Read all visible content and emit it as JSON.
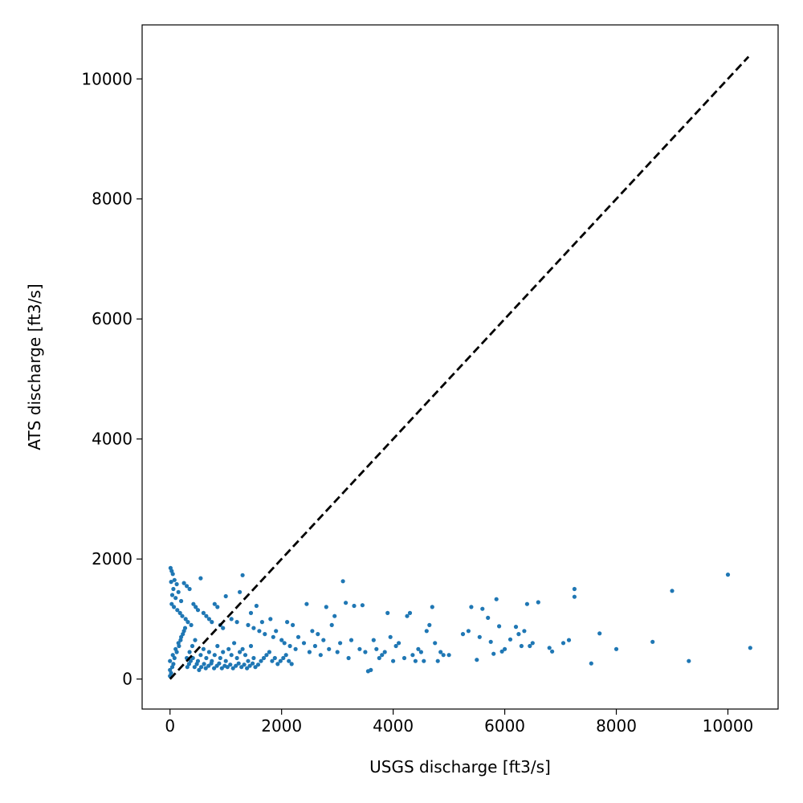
{
  "chart_data": {
    "type": "scatter",
    "title": "",
    "xlabel": "USGS discharge [ft3/s]",
    "ylabel": "ATS discharge [ft3/s]",
    "xlim": [
      -500,
      10900
    ],
    "ylim": [
      -500,
      10900
    ],
    "xticks": [
      0,
      2000,
      4000,
      6000,
      8000,
      10000
    ],
    "yticks": [
      0,
      2000,
      4000,
      6000,
      8000,
      10000
    ],
    "grid": false,
    "legend": "none",
    "reference_line": {
      "style": "dashed",
      "color": "#000000",
      "from": [
        0,
        0
      ],
      "to": [
        10370,
        10370
      ]
    },
    "series": [
      {
        "color": "#1f77b4",
        "points": [
          [
            0,
            50
          ],
          [
            0,
            150
          ],
          [
            0,
            300
          ],
          [
            10,
            1850
          ],
          [
            30,
            1800
          ],
          [
            50,
            1750
          ],
          [
            20,
            1620
          ],
          [
            80,
            1650
          ],
          [
            120,
            1580
          ],
          [
            60,
            1500
          ],
          [
            150,
            1450
          ],
          [
            40,
            1400
          ],
          [
            100,
            1350
          ],
          [
            200,
            1300
          ],
          [
            30,
            1250
          ],
          [
            70,
            1200
          ],
          [
            130,
            1150
          ],
          [
            250,
            1600
          ],
          [
            300,
            1550
          ],
          [
            350,
            1500
          ],
          [
            180,
            1100
          ],
          [
            220,
            1050
          ],
          [
            280,
            1000
          ],
          [
            320,
            950
          ],
          [
            380,
            900
          ],
          [
            420,
            1250
          ],
          [
            460,
            1200
          ],
          [
            500,
            1150
          ],
          [
            550,
            1680
          ],
          [
            600,
            1100
          ],
          [
            650,
            1050
          ],
          [
            700,
            1000
          ],
          [
            750,
            950
          ],
          [
            800,
            1250
          ],
          [
            850,
            1200
          ],
          [
            900,
            900
          ],
          [
            950,
            850
          ],
          [
            1000,
            1380
          ],
          [
            1100,
            1000
          ],
          [
            1200,
            950
          ],
          [
            1250,
            1450
          ],
          [
            1300,
            1730
          ],
          [
            1400,
            900
          ],
          [
            1450,
            1100
          ],
          [
            1500,
            850
          ],
          [
            1550,
            1220
          ],
          [
            1600,
            800
          ],
          [
            1650,
            950
          ],
          [
            1700,
            750
          ],
          [
            1800,
            1000
          ],
          [
            1850,
            700
          ],
          [
            1900,
            800
          ],
          [
            2000,
            650
          ],
          [
            2050,
            600
          ],
          [
            2100,
            950
          ],
          [
            2150,
            550
          ],
          [
            2200,
            900
          ],
          [
            2250,
            500
          ],
          [
            2300,
            700
          ],
          [
            2400,
            600
          ],
          [
            2450,
            1250
          ],
          [
            2500,
            450
          ],
          [
            2550,
            800
          ],
          [
            2600,
            550
          ],
          [
            2650,
            750
          ],
          [
            2700,
            400
          ],
          [
            2750,
            650
          ],
          [
            2800,
            1200
          ],
          [
            2850,
            500
          ],
          [
            2900,
            900
          ],
          [
            2950,
            1050
          ],
          [
            3000,
            450
          ],
          [
            3050,
            600
          ],
          [
            3100,
            1630
          ],
          [
            3150,
            1270
          ],
          [
            3200,
            350
          ],
          [
            3250,
            650
          ],
          [
            3300,
            1220
          ],
          [
            3400,
            500
          ],
          [
            3450,
            1230
          ],
          [
            3500,
            450
          ],
          [
            3550,
            130
          ],
          [
            3600,
            150
          ],
          [
            3650,
            650
          ],
          [
            3700,
            500
          ],
          [
            3750,
            350
          ],
          [
            3800,
            400
          ],
          [
            3850,
            450
          ],
          [
            3900,
            1100
          ],
          [
            3950,
            700
          ],
          [
            4000,
            300
          ],
          [
            4050,
            550
          ],
          [
            4100,
            600
          ],
          [
            4200,
            350
          ],
          [
            4250,
            1050
          ],
          [
            4300,
            1100
          ],
          [
            4350,
            400
          ],
          [
            4400,
            300
          ],
          [
            4450,
            500
          ],
          [
            4500,
            450
          ],
          [
            4550,
            300
          ],
          [
            4600,
            800
          ],
          [
            4650,
            900
          ],
          [
            4700,
            1200
          ],
          [
            4750,
            600
          ],
          [
            4800,
            300
          ],
          [
            4850,
            450
          ],
          [
            4900,
            400
          ],
          [
            5000,
            400
          ],
          [
            5250,
            750
          ],
          [
            5350,
            800
          ],
          [
            5400,
            1200
          ],
          [
            5500,
            320
          ],
          [
            5550,
            700
          ],
          [
            5600,
            1170
          ],
          [
            5700,
            1020
          ],
          [
            5750,
            620
          ],
          [
            5800,
            420
          ],
          [
            5850,
            1330
          ],
          [
            5900,
            880
          ],
          [
            5950,
            460
          ],
          [
            6000,
            500
          ],
          [
            6100,
            660
          ],
          [
            6200,
            870
          ],
          [
            6250,
            750
          ],
          [
            6300,
            550
          ],
          [
            6350,
            800
          ],
          [
            6400,
            1250
          ],
          [
            6450,
            550
          ],
          [
            6500,
            600
          ],
          [
            6600,
            1280
          ],
          [
            6800,
            520
          ],
          [
            6850,
            460
          ],
          [
            7050,
            600
          ],
          [
            7150,
            650
          ],
          [
            7250,
            1500
          ],
          [
            7250,
            1370
          ],
          [
            7550,
            260
          ],
          [
            7700,
            760
          ],
          [
            8000,
            500
          ],
          [
            8650,
            620
          ],
          [
            9000,
            1470
          ],
          [
            9300,
            300
          ],
          [
            10000,
            1740
          ],
          [
            10400,
            520
          ],
          [
            50,
            400
          ],
          [
            100,
            500
          ],
          [
            150,
            600
          ],
          [
            200,
            700
          ],
          [
            250,
            800
          ],
          [
            300,
            350
          ],
          [
            350,
            450
          ],
          [
            400,
            550
          ],
          [
            450,
            650
          ],
          [
            500,
            300
          ],
          [
            550,
            400
          ],
          [
            600,
            500
          ],
          [
            650,
            350
          ],
          [
            700,
            450
          ],
          [
            750,
            300
          ],
          [
            800,
            400
          ],
          [
            850,
            550
          ],
          [
            900,
            350
          ],
          [
            950,
            450
          ],
          [
            1000,
            300
          ],
          [
            1050,
            500
          ],
          [
            1100,
            400
          ],
          [
            1150,
            600
          ],
          [
            1200,
            350
          ],
          [
            1250,
            450
          ],
          [
            1300,
            500
          ],
          [
            1350,
            400
          ],
          [
            1400,
            300
          ],
          [
            1450,
            550
          ],
          [
            1500,
            350
          ],
          [
            20,
            100
          ],
          [
            40,
            200
          ],
          [
            60,
            250
          ],
          [
            80,
            350
          ],
          [
            120,
            450
          ],
          [
            160,
            550
          ],
          [
            190,
            650
          ],
          [
            230,
            750
          ],
          [
            270,
            850
          ],
          [
            310,
            200
          ],
          [
            340,
            250
          ],
          [
            370,
            300
          ],
          [
            410,
            350
          ],
          [
            440,
            200
          ],
          [
            480,
            250
          ],
          [
            520,
            150
          ],
          [
            560,
            200
          ],
          [
            610,
            250
          ],
          [
            640,
            180
          ],
          [
            690,
            220
          ],
          [
            740,
            260
          ],
          [
            790,
            180
          ],
          [
            840,
            220
          ],
          [
            880,
            260
          ],
          [
            930,
            180
          ],
          [
            980,
            220
          ],
          [
            1030,
            200
          ],
          [
            1080,
            240
          ],
          [
            1130,
            180
          ],
          [
            1180,
            220
          ],
          [
            1230,
            260
          ],
          [
            1280,
            200
          ],
          [
            1330,
            240
          ],
          [
            1380,
            180
          ],
          [
            1430,
            220
          ],
          [
            1480,
            260
          ],
          [
            1530,
            200
          ],
          [
            1580,
            240
          ],
          [
            1630,
            300
          ],
          [
            1680,
            350
          ],
          [
            1730,
            400
          ],
          [
            1780,
            450
          ],
          [
            1830,
            300
          ],
          [
            1880,
            350
          ],
          [
            1930,
            250
          ],
          [
            1980,
            300
          ],
          [
            2030,
            350
          ],
          [
            2080,
            400
          ],
          [
            2130,
            300
          ],
          [
            2180,
            250
          ]
        ]
      }
    ]
  }
}
